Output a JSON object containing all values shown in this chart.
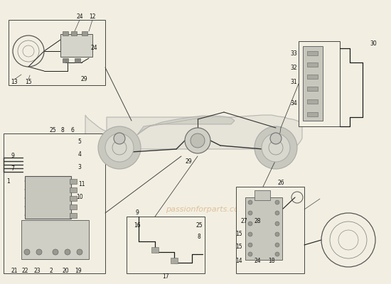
{
  "bg_color": "#f2efe2",
  "lc": "#1a1a1a",
  "gray": "#888888",
  "lgray": "#bbbbbb",
  "dgray": "#555555",
  "watermark_color": "#cc8844",
  "watermark_text": "passionforparts.com",
  "fig_width": 5.5,
  "fig_height": 4.0,
  "dpi": 100
}
